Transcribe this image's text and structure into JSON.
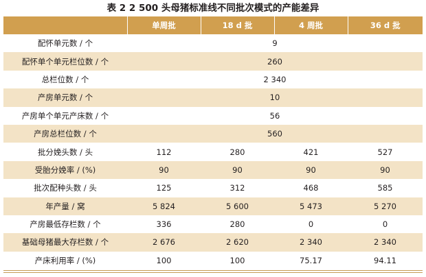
{
  "caption": "表 2  2 500 头母猪标准线不同批次模式的产能差异",
  "header": {
    "col0": "",
    "col1": "单周批",
    "col2": "18 d 批",
    "col3": "4 周批",
    "col4": "36 d 批"
  },
  "rows": [
    {
      "label": "配怀单元数 / 个",
      "merged": "9"
    },
    {
      "label": "配怀单个单元栏位数 / 个",
      "merged": "260"
    },
    {
      "label": "总栏位数 / 个",
      "merged": "2 340"
    },
    {
      "label": "产房单元数 / 个",
      "merged": "10"
    },
    {
      "label": "产房单个单元产床数 / 个",
      "merged": "56"
    },
    {
      "label": "产房总栏位数 / 个",
      "merged": "560"
    },
    {
      "label": "批分娩头数 / 头",
      "values": [
        "112",
        "280",
        "421",
        "527"
      ]
    },
    {
      "label": "受胎分娩率 / (%)",
      "values": [
        "90",
        "90",
        "90",
        "90"
      ]
    },
    {
      "label": "批次配种头数 / 头",
      "values": [
        "125",
        "312",
        "468",
        "585"
      ]
    },
    {
      "label": "年产量 / 窝",
      "values": [
        "5 824",
        "5 600",
        "5 473",
        "5 270"
      ]
    },
    {
      "label": "产房最低存栏数 / 个",
      "values": [
        "336",
        "280",
        "0",
        "0"
      ]
    },
    {
      "label": "基础母猪最大存栏数 / 个",
      "values": [
        "2 676",
        "2 620",
        "2 340",
        "2 340"
      ]
    },
    {
      "label": "产床利用率 / (%)",
      "values": [
        "100",
        "100",
        "75.17",
        "94.11"
      ]
    }
  ],
  "colors": {
    "header_bg": "#d19f4f",
    "stripe_bg": "#f3e3c6"
  }
}
